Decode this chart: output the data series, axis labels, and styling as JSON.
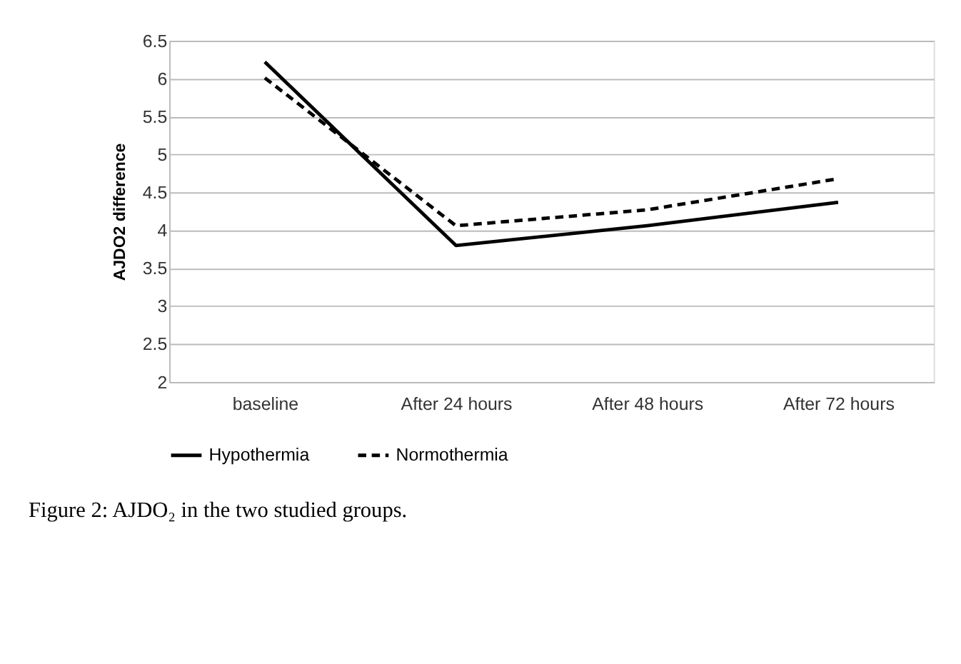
{
  "chart_data": {
    "type": "line",
    "ylabel": "AJDO2 difference",
    "categories": [
      "baseline",
      "After 24 hours",
      "After 48 hours",
      "After 72 hours"
    ],
    "series": [
      {
        "name": "Hypothermia",
        "color": "#000000",
        "line_style": "solid",
        "values": [
          6.22,
          3.8,
          4.06,
          4.37
        ]
      },
      {
        "name": "Normothermia",
        "color": "#000000",
        "line_style": "dashed",
        "values": [
          6.01,
          4.06,
          4.27,
          4.68
        ]
      }
    ],
    "ylim": [
      2,
      6.5
    ],
    "yticks": [
      2,
      2.5,
      3,
      3.5,
      4,
      4.5,
      5,
      5.5,
      6,
      6.5
    ],
    "grid": "y",
    "legend": "bottom",
    "marker": "none",
    "annotations": [
      "Figure 2: AJDO₂ in the two studied groups."
    ]
  }
}
